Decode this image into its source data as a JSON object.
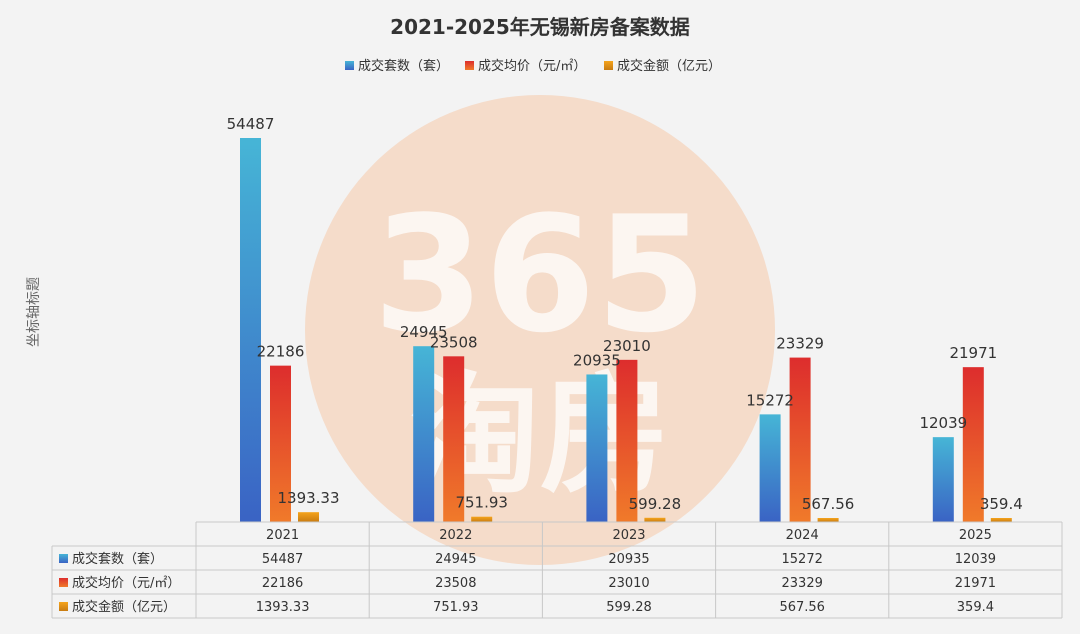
{
  "chart_data": {
    "type": "bar",
    "title": "2021-2025年无锡新房备案数据",
    "ylabel": "坐标轴标题",
    "categories": [
      "2021",
      "2022",
      "2023",
      "2024",
      "2025"
    ],
    "series": [
      {
        "name": "成交套数（套）",
        "values": [
          54487,
          24945,
          20935,
          15272,
          12039
        ],
        "labels": [
          "54487",
          "24945",
          "20935",
          "15272",
          "12039"
        ],
        "color_top": "#46b5d6",
        "color_bottom": "#3a63c4"
      },
      {
        "name": "成交均价（元/㎡）",
        "values": [
          22186,
          23508,
          23010,
          23329,
          21971
        ],
        "labels": [
          "22186",
          "23508",
          "23010",
          "23329",
          "21971"
        ],
        "color_top": "#dd2d2d",
        "color_bottom": "#f07a2a"
      },
      {
        "name": "成交金额（亿元）",
        "values": [
          1393.33,
          751.93,
          599.28,
          567.56,
          359.4
        ],
        "labels": [
          "1393.33",
          "751.93",
          "599.28",
          "567.56",
          "359.4"
        ],
        "color_top": "#f5a41c",
        "color_bottom": "#c97c12"
      }
    ],
    "ylim": [
      0,
      56000
    ],
    "legend_position": "top",
    "data_table": true,
    "grid": false
  },
  "watermark": {
    "text_top": "365",
    "text_bottom": "淘房",
    "color": "#f6c9a8"
  }
}
